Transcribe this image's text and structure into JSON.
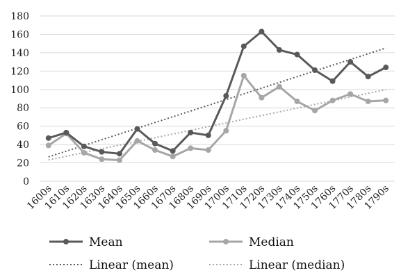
{
  "chart_data": {
    "type": "line",
    "categories": [
      "1600s",
      "1610s",
      "1620s",
      "1630s",
      "1640s",
      "1650s",
      "1660s",
      "1670s",
      "1680s",
      "1690s",
      "1700s",
      "1710s",
      "1720s",
      "1730s",
      "1740s",
      "1750s",
      "1760s",
      "1770s",
      "1780s",
      "1790s"
    ],
    "series": [
      {
        "name": "Mean",
        "color": "#595959",
        "marker": "circle",
        "values": [
          47,
          53,
          38,
          32,
          30,
          57,
          41,
          33,
          53,
          50,
          93,
          147,
          163,
          143,
          138,
          121,
          109,
          130,
          114,
          124
        ]
      },
      {
        "name": "Median",
        "color": "#a6a6a6",
        "marker": "circle",
        "values": [
          39,
          52,
          31,
          24,
          23,
          44,
          34,
          27,
          36,
          34,
          55,
          115,
          91,
          103,
          87,
          77,
          88,
          95,
          87,
          88
        ]
      }
    ],
    "trendlines": [
      {
        "name": "Linear (mean)",
        "series": "Mean",
        "type": "linear",
        "color": "#595959",
        "style": "dotted"
      },
      {
        "name": "Linear (median)",
        "series": "Median",
        "type": "linear",
        "color": "#a6a6a6",
        "style": "dotted"
      }
    ],
    "ylim": [
      0,
      180
    ],
    "yticks": [
      0,
      20,
      40,
      60,
      80,
      100,
      120,
      140,
      160,
      180
    ],
    "grid": true,
    "legend_placement": "bottom",
    "title": "",
    "xlabel": "",
    "ylabel": ""
  }
}
